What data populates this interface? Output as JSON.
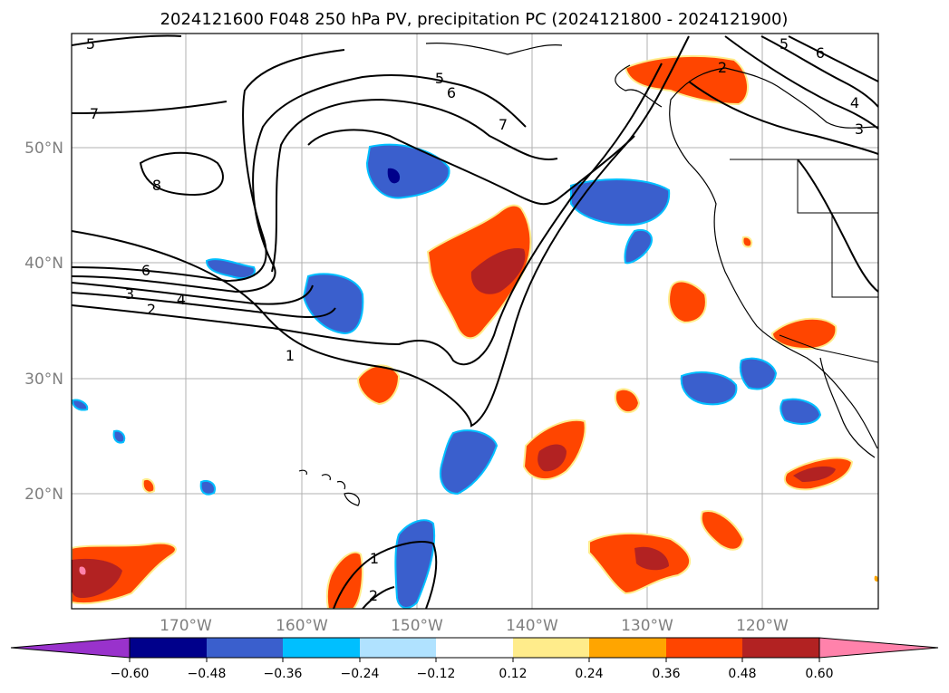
{
  "title": "2024121600 F048 250 hPa PV, precipitation PC (2024121800 - 2024121900)",
  "map": {
    "lat_labels": [
      "50°N",
      "40°N",
      "30°N",
      "20°N"
    ],
    "lon_labels": [
      "170°W",
      "160°W",
      "150°W",
      "140°W",
      "130°W",
      "120°W"
    ],
    "pv_contour_labels": [
      "1",
      "2",
      "3",
      "4",
      "5",
      "6",
      "7",
      "8"
    ]
  },
  "colorbar": {
    "tick_labels": [
      "−0.60",
      "−0.48",
      "−0.36",
      "−0.24",
      "−0.12",
      "0.12",
      "0.24",
      "0.36",
      "0.48",
      "0.60"
    ],
    "colors": [
      "#9932cc",
      "#00008b",
      "#3a5fcd",
      "#00bfff",
      "#b0e2ff",
      "#ffffff",
      "#ffec8b",
      "#ffa500",
      "#ff4500",
      "#b22222",
      "#ff82ab"
    ]
  }
}
